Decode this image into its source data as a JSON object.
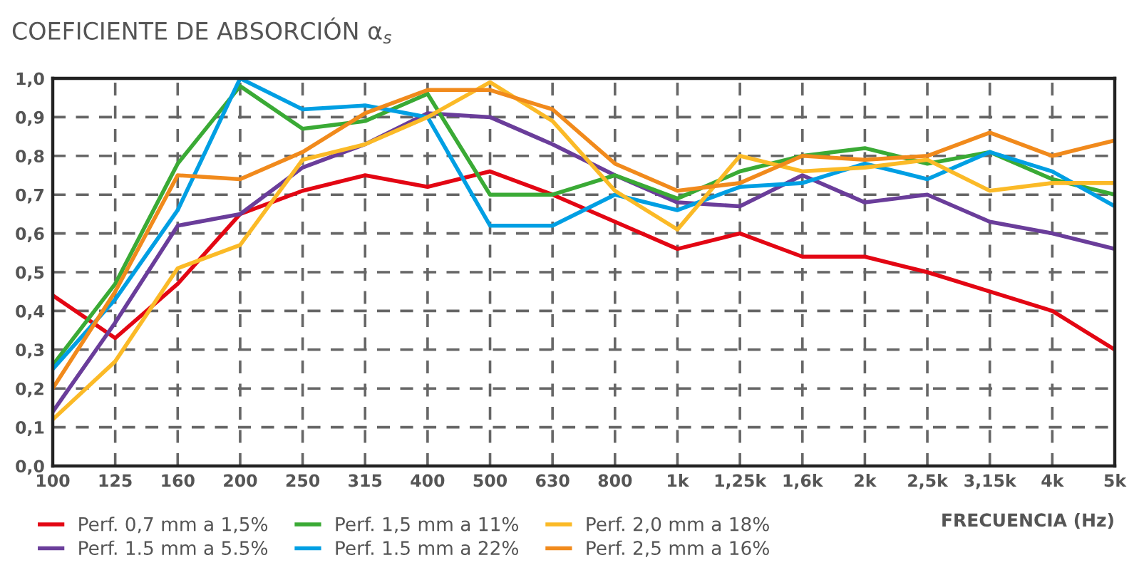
{
  "chart_data": {
    "type": "line",
    "title": "COEFICIENTE DE ABSORCIÓN α$_{s}$",
    "xlabel": "FRECUENCIA (Hz)",
    "categories": [
      "100",
      "125",
      "160",
      "200",
      "250",
      "315",
      "400",
      "500",
      "630",
      "800",
      "1k",
      "1,25k",
      "1,6k",
      "2k",
      "2,5k",
      "3,15k",
      "4k",
      "5k"
    ],
    "ylim": [
      0,
      1
    ],
    "yticks": [
      {
        "value": 0,
        "label": "0,0"
      },
      {
        "value": 0.1,
        "label": "0,1"
      },
      {
        "value": 0.2,
        "label": "0,2"
      },
      {
        "value": 0.3,
        "label": "0,3"
      },
      {
        "value": 0.4,
        "label": "0,4"
      },
      {
        "value": 0.5,
        "label": "0,5"
      },
      {
        "value": 0.6,
        "label": "0,6"
      },
      {
        "value": 0.7,
        "label": "0,7"
      },
      {
        "value": 0.8,
        "label": "0,8"
      },
      {
        "value": 0.9,
        "label": "0,9"
      },
      {
        "value": 1,
        "label": "1,0"
      }
    ],
    "grid": true,
    "legend": "bottom",
    "marker": "none",
    "line_style": "solid",
    "series": [
      {
        "name": "Perf. 0,7 mm a 1,5%",
        "color": "#e30613",
        "values": [
          0.44,
          0.33,
          0.47,
          0.65,
          0.71,
          0.75,
          0.72,
          0.76,
          0.7,
          0.63,
          0.56,
          0.6,
          0.54,
          0.54,
          0.5,
          0.45,
          0.4,
          0.3
        ]
      },
      {
        "name": "Perf. 1.5 mm a 5.5%",
        "color": "#6a3d9a",
        "values": [
          0.14,
          0.37,
          0.62,
          0.65,
          0.77,
          0.83,
          0.91,
          0.9,
          0.83,
          0.75,
          0.68,
          0.67,
          0.75,
          0.68,
          0.7,
          0.63,
          0.6,
          0.56
        ]
      },
      {
        "name": "Perf. 1,5 mm a 11%",
        "color": "#3aaa35",
        "values": [
          0.26,
          0.47,
          0.78,
          0.98,
          0.87,
          0.89,
          0.96,
          0.7,
          0.7,
          0.75,
          0.69,
          0.76,
          0.8,
          0.82,
          0.78,
          0.81,
          0.74,
          0.7
        ]
      },
      {
        "name": "Perf. 1.5 mm a 22%",
        "color": "#009fe3",
        "values": [
          0.25,
          0.43,
          0.66,
          1.0,
          0.92,
          0.93,
          0.9,
          0.62,
          0.62,
          0.7,
          0.66,
          0.72,
          0.73,
          0.78,
          0.74,
          0.81,
          0.76,
          0.67
        ]
      },
      {
        "name": "Perf. 2,0 mm a 18%",
        "color": "#fbba27",
        "values": [
          0.12,
          0.27,
          0.51,
          0.57,
          0.79,
          0.83,
          0.9,
          0.99,
          0.89,
          0.71,
          0.61,
          0.8,
          0.76,
          0.77,
          0.79,
          0.71,
          0.73,
          0.73
        ]
      },
      {
        "name": "Perf. 2,5 mm a 16%",
        "color": "#f18a1c",
        "values": [
          0.2,
          0.45,
          0.75,
          0.74,
          0.81,
          0.91,
          0.97,
          0.97,
          0.92,
          0.78,
          0.71,
          0.73,
          0.8,
          0.79,
          0.8,
          0.86,
          0.8,
          0.84
        ]
      }
    ]
  }
}
